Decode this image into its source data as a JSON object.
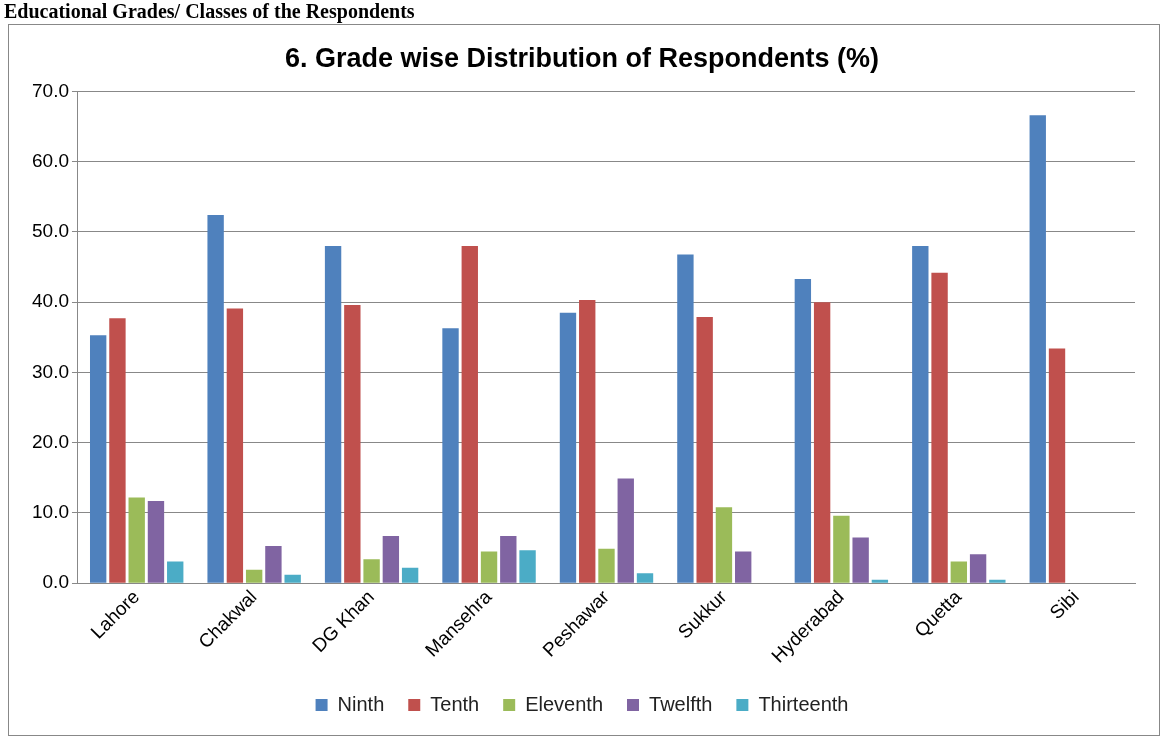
{
  "chart_data": {
    "type": "bar",
    "title": "6. Grade wise Distribution of Respondents (%)",
    "annotations": [
      "Educational Grades/ Classes of the Respondents"
    ],
    "categories": [
      "Lahore",
      "Chakwal",
      "DG Khan",
      "Mansehra",
      "Peshawar",
      "Sukkur",
      "Hyderabad",
      "Quetta",
      "Sibi"
    ],
    "series": [
      {
        "name": "Ninth",
        "color": "#4f81bd",
        "values": [
          35.3,
          52.4,
          48.0,
          36.3,
          38.5,
          46.8,
          43.3,
          48.0,
          66.6
        ]
      },
      {
        "name": "Tenth",
        "color": "#c0504d",
        "values": [
          37.7,
          39.1,
          39.6,
          48.0,
          40.3,
          37.9,
          40.0,
          44.2,
          33.4
        ]
      },
      {
        "name": "Eleventh",
        "color": "#9bbb59",
        "values": [
          12.2,
          1.9,
          3.4,
          4.5,
          4.9,
          10.8,
          9.6,
          3.1,
          null
        ]
      },
      {
        "name": "Twelfth",
        "color": "#8064a2",
        "values": [
          11.7,
          5.3,
          6.7,
          6.7,
          14.9,
          4.5,
          6.5,
          4.1,
          null
        ]
      },
      {
        "name": "Thirteenth",
        "color": "#4bacc6",
        "values": [
          3.1,
          1.2,
          2.2,
          4.7,
          1.4,
          null,
          0.5,
          0.5,
          null
        ]
      }
    ],
    "ylim": [
      0,
      70
    ],
    "yticks": [
      {
        "value": 0,
        "label": "0.0"
      },
      {
        "value": 10,
        "label": "10.0"
      },
      {
        "value": 20,
        "label": "20.0"
      },
      {
        "value": 30,
        "label": "30.0"
      },
      {
        "value": 40,
        "label": "40.0"
      },
      {
        "value": 50,
        "label": "50.0"
      },
      {
        "value": 60,
        "label": "60.0"
      },
      {
        "value": 70,
        "label": "70.0"
      }
    ],
    "grid": "y",
    "legend": "bottom"
  }
}
